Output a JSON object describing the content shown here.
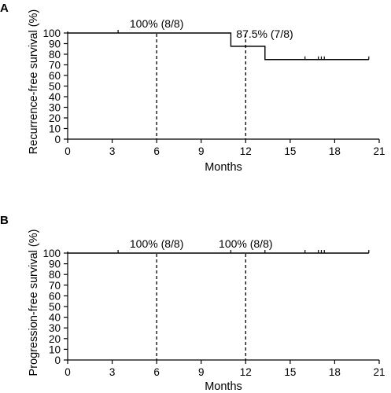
{
  "chart_data": [
    {
      "type": "line",
      "panel": "A",
      "title": "",
      "xlabel": "Months",
      "ylabel": "Recurrence-free survival (%)",
      "xlim": [
        0,
        21
      ],
      "ylim": [
        0,
        100
      ],
      "xticks": [
        0,
        3,
        6,
        9,
        12,
        15,
        18,
        21
      ],
      "yticks": [
        0,
        10,
        20,
        30,
        40,
        50,
        60,
        70,
        80,
        90,
        100
      ],
      "xtick_labels": [
        "0",
        "3",
        "6",
        "9",
        "12",
        "15",
        "18",
        "21"
      ],
      "ytick_labels": [
        "0",
        "10",
        "20",
        "30",
        "40",
        "50",
        "60",
        "70",
        "80",
        "90",
        "100"
      ],
      "series": [
        {
          "step_x": [
            0,
            11,
            11,
            13.3,
            13.3,
            20.3
          ],
          "step_y": [
            100,
            100,
            87.5,
            87.5,
            75,
            75
          ]
        }
      ],
      "censor_marks": [
        {
          "x": 3.4,
          "y": 100
        },
        {
          "x": 16.0,
          "y": 75
        },
        {
          "x": 16.9,
          "y": 75
        },
        {
          "x": 17.1,
          "y": 75
        },
        {
          "x": 17.3,
          "y": 75
        },
        {
          "x": 20.3,
          "y": 75
        }
      ],
      "reference_lines": [
        {
          "x": 6,
          "label": "100% (8/8)"
        },
        {
          "x": 12,
          "label": "87.5% (7/8)"
        }
      ],
      "grid": false
    },
    {
      "type": "line",
      "panel": "B",
      "title": "",
      "xlabel": "Months",
      "ylabel": "Progression-free survival (%)",
      "xlim": [
        0,
        21
      ],
      "ylim": [
        0,
        100
      ],
      "xticks": [
        0,
        3,
        6,
        9,
        12,
        15,
        18,
        21
      ],
      "yticks": [
        0,
        10,
        20,
        30,
        40,
        50,
        60,
        70,
        80,
        90,
        100
      ],
      "xtick_labels": [
        "0",
        "3",
        "6",
        "9",
        "12",
        "15",
        "18",
        "21"
      ],
      "ytick_labels": [
        "0",
        "10",
        "20",
        "30",
        "40",
        "50",
        "60",
        "70",
        "80",
        "90",
        "100"
      ],
      "series": [
        {
          "step_x": [
            0,
            20.3
          ],
          "step_y": [
            100,
            100
          ]
        }
      ],
      "censor_marks": [
        {
          "x": 3.4,
          "y": 100
        },
        {
          "x": 11.0,
          "y": 100
        },
        {
          "x": 13.3,
          "y": 100
        },
        {
          "x": 16.0,
          "y": 100
        },
        {
          "x": 16.9,
          "y": 100
        },
        {
          "x": 17.1,
          "y": 100
        },
        {
          "x": 17.3,
          "y": 100
        },
        {
          "x": 20.3,
          "y": 100
        }
      ],
      "reference_lines": [
        {
          "x": 6,
          "label": "100% (8/8)"
        },
        {
          "x": 12,
          "label": "100% (8/8)"
        }
      ],
      "grid": false
    }
  ]
}
